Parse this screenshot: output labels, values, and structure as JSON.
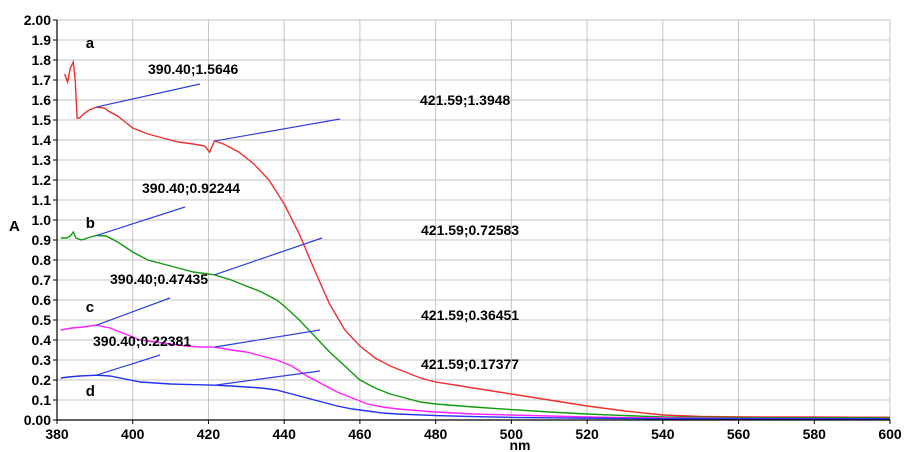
{
  "chart_data": {
    "type": "line",
    "xlabel": "nm",
    "ylabel": "A",
    "xlim": [
      380,
      600
    ],
    "ylim": [
      0,
      2.0
    ],
    "grid": true,
    "x_ticks": [
      "380",
      "400",
      "420",
      "440",
      "460",
      "480",
      "500",
      "520",
      "540",
      "560",
      "580",
      "600"
    ],
    "y_ticks": [
      "0.00",
      "0.1",
      "0.2",
      "0.3",
      "0.4",
      "0.5",
      "0.6",
      "0.7",
      "0.8",
      "0.9",
      "1.0",
      "1.1",
      "1.2",
      "1.3",
      "1.4",
      "1.5",
      "1.6",
      "1.7",
      "1.8",
      "1.9",
      "2.00"
    ],
    "series": [
      {
        "name": "a",
        "color": "#f03030",
        "points": [
          [
            382,
            1.73
          ],
          [
            382.8,
            1.69
          ],
          [
            383.5,
            1.76
          ],
          [
            384.3,
            1.79
          ],
          [
            384.8,
            1.7
          ],
          [
            385.3,
            1.51
          ],
          [
            386,
            1.51
          ],
          [
            387,
            1.53
          ],
          [
            388.5,
            1.55
          ],
          [
            390.4,
            1.5646
          ],
          [
            392.5,
            1.56
          ],
          [
            394,
            1.54
          ],
          [
            396,
            1.52
          ],
          [
            398,
            1.49
          ],
          [
            400,
            1.46
          ],
          [
            404,
            1.43
          ],
          [
            408,
            1.41
          ],
          [
            412,
            1.39
          ],
          [
            416,
            1.38
          ],
          [
            419,
            1.37
          ],
          [
            420.3,
            1.34
          ],
          [
            421.59,
            1.3948
          ],
          [
            424,
            1.38
          ],
          [
            428,
            1.34
          ],
          [
            432,
            1.28
          ],
          [
            436,
            1.2
          ],
          [
            440,
            1.08
          ],
          [
            444,
            0.93
          ],
          [
            448,
            0.75
          ],
          [
            452,
            0.58
          ],
          [
            456,
            0.45
          ],
          [
            460,
            0.37
          ],
          [
            464,
            0.31
          ],
          [
            468,
            0.27
          ],
          [
            472,
            0.24
          ],
          [
            476,
            0.21
          ],
          [
            480,
            0.19
          ],
          [
            490,
            0.16
          ],
          [
            500,
            0.13
          ],
          [
            510,
            0.1
          ],
          [
            520,
            0.07
          ],
          [
            530,
            0.045
          ],
          [
            540,
            0.025
          ],
          [
            550,
            0.018
          ],
          [
            560,
            0.016
          ],
          [
            570,
            0.015
          ],
          [
            580,
            0.015
          ],
          [
            590,
            0.014
          ],
          [
            600,
            0.014
          ]
        ]
      },
      {
        "name": "b",
        "color": "#119911",
        "points": [
          [
            381,
            0.91
          ],
          [
            382.5,
            0.91
          ],
          [
            383.5,
            0.92
          ],
          [
            384.3,
            0.94
          ],
          [
            385,
            0.91
          ],
          [
            386.5,
            0.9
          ],
          [
            388,
            0.91
          ],
          [
            390.4,
            0.92244
          ],
          [
            393,
            0.92
          ],
          [
            396,
            0.89
          ],
          [
            400,
            0.84
          ],
          [
            404,
            0.8
          ],
          [
            408,
            0.78
          ],
          [
            412,
            0.76
          ],
          [
            416,
            0.74
          ],
          [
            421.59,
            0.72583
          ],
          [
            426,
            0.7
          ],
          [
            430,
            0.67
          ],
          [
            434,
            0.64
          ],
          [
            438,
            0.6
          ],
          [
            440,
            0.57
          ],
          [
            444,
            0.5
          ],
          [
            448,
            0.42
          ],
          [
            452,
            0.34
          ],
          [
            456,
            0.27
          ],
          [
            460,
            0.2
          ],
          [
            464,
            0.16
          ],
          [
            468,
            0.13
          ],
          [
            472,
            0.11
          ],
          [
            476,
            0.09
          ],
          [
            480,
            0.08
          ],
          [
            490,
            0.065
          ],
          [
            500,
            0.052
          ],
          [
            510,
            0.04
          ],
          [
            520,
            0.03
          ],
          [
            530,
            0.022
          ],
          [
            540,
            0.015
          ],
          [
            560,
            0.012
          ],
          [
            580,
            0.011
          ],
          [
            600,
            0.01
          ]
        ]
      },
      {
        "name": "c",
        "color": "#ff20ff",
        "points": [
          [
            381,
            0.45
          ],
          [
            384,
            0.46
          ],
          [
            387,
            0.465
          ],
          [
            390.4,
            0.47435
          ],
          [
            394,
            0.46
          ],
          [
            398,
            0.43
          ],
          [
            402,
            0.4
          ],
          [
            406,
            0.39
          ],
          [
            410,
            0.38
          ],
          [
            414,
            0.37
          ],
          [
            418,
            0.365
          ],
          [
            421.59,
            0.36451
          ],
          [
            426,
            0.35
          ],
          [
            430,
            0.34
          ],
          [
            434,
            0.32
          ],
          [
            438,
            0.3
          ],
          [
            442,
            0.27
          ],
          [
            446,
            0.22
          ],
          [
            450,
            0.18
          ],
          [
            454,
            0.14
          ],
          [
            458,
            0.11
          ],
          [
            462,
            0.08
          ],
          [
            466,
            0.065
          ],
          [
            470,
            0.055
          ],
          [
            480,
            0.04
          ],
          [
            490,
            0.03
          ],
          [
            500,
            0.025
          ],
          [
            520,
            0.015
          ],
          [
            540,
            0.01
          ],
          [
            560,
            0.008
          ],
          [
            600,
            0.006
          ]
        ]
      },
      {
        "name": "d",
        "color": "#2233ee",
        "points": [
          [
            381,
            0.21
          ],
          [
            383,
            0.215
          ],
          [
            386,
            0.22
          ],
          [
            390.4,
            0.22381
          ],
          [
            394,
            0.22
          ],
          [
            398,
            0.205
          ],
          [
            402,
            0.19
          ],
          [
            406,
            0.185
          ],
          [
            410,
            0.18
          ],
          [
            414,
            0.178
          ],
          [
            418,
            0.176
          ],
          [
            421.59,
            0.17377
          ],
          [
            426,
            0.17
          ],
          [
            430,
            0.165
          ],
          [
            434,
            0.16
          ],
          [
            438,
            0.15
          ],
          [
            442,
            0.13
          ],
          [
            446,
            0.11
          ],
          [
            450,
            0.09
          ],
          [
            454,
            0.07
          ],
          [
            458,
            0.055
          ],
          [
            462,
            0.045
          ],
          [
            466,
            0.035
          ],
          [
            470,
            0.03
          ],
          [
            480,
            0.022
          ],
          [
            490,
            0.017
          ],
          [
            500,
            0.013
          ],
          [
            520,
            0.009
          ],
          [
            540,
            0.006
          ],
          [
            560,
            0.006
          ],
          [
            580,
            0.006
          ],
          [
            600,
            0.006
          ]
        ]
      }
    ],
    "annotations": [
      {
        "text": "390.40;1.5646",
        "x": 390.4,
        "y": 1.5646
      },
      {
        "text": "421.59;1.3948",
        "x": 421.59,
        "y": 1.3948
      },
      {
        "text": "390.40;0.92244",
        "x": 390.4,
        "y": 0.92244
      },
      {
        "text": "421.59;0.72583",
        "x": 421.59,
        "y": 0.72583
      },
      {
        "text": "390.40;0.47435",
        "x": 390.4,
        "y": 0.47435
      },
      {
        "text": "421.59;0.36451",
        "x": 421.59,
        "y": 0.36451
      },
      {
        "text": "390.40;0.22381",
        "x": 390.4,
        "y": 0.22381
      },
      {
        "text": "421.59;0.17377",
        "x": 421.59,
        "y": 0.17377
      }
    ],
    "curve_labels": [
      {
        "text": "a",
        "x": 387.6,
        "y": 1.86
      },
      {
        "text": "b",
        "x": 387.6,
        "y": 0.96
      },
      {
        "text": "c",
        "x": 387.6,
        "y": 0.54
      },
      {
        "text": "d",
        "x": 387.6,
        "y": 0.12
      }
    ]
  }
}
